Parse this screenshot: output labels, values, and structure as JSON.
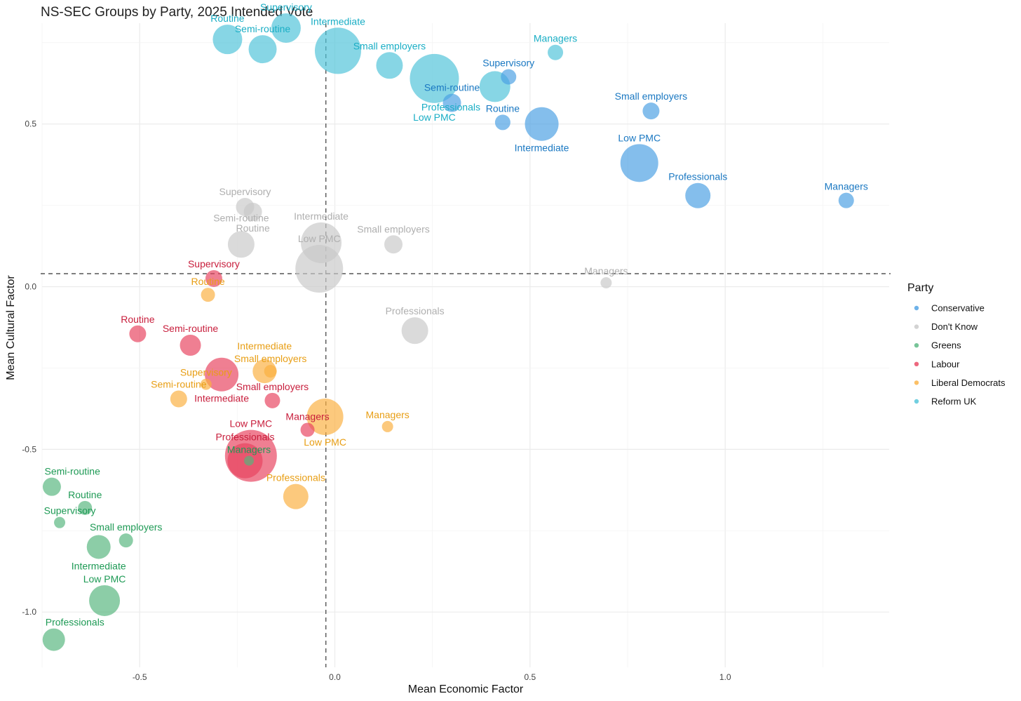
{
  "chart_data": {
    "type": "scatter",
    "title": "NS-SEC Groups by Party, 2025 Intended Vote",
    "xlabel": "Mean Economic Factor",
    "ylabel": "Mean Cultural Factor",
    "xlim": [
      -0.75,
      1.42
    ],
    "ylim": [
      -1.17,
      0.81
    ],
    "x_ticks": [
      -0.5,
      0.0,
      0.5,
      1.0
    ],
    "x_tick_labels": [
      "-0.5",
      "0.0",
      "0.5",
      "1.0"
    ],
    "y_ticks": [
      -1.0,
      -0.5,
      0.0,
      0.5
    ],
    "y_tick_labels": [
      "-1.0",
      "-0.5",
      "0.0",
      "0.5"
    ],
    "reference_lines": {
      "vertical_x": -0.023,
      "horizontal_y": 0.04
    },
    "grid": true,
    "legend": {
      "title": "Party",
      "placement": "right"
    },
    "series": [
      {
        "name": "Conservative",
        "color": "#4A9FE3",
        "label_color": "#1A78C2",
        "points": [
          {
            "label": "Managers",
            "x": 1.31,
            "y": 0.265,
            "size": 11
          },
          {
            "label": "Professionals",
            "x": 0.93,
            "y": 0.28,
            "size": 18
          },
          {
            "label": "Low PMC",
            "x": 0.78,
            "y": 0.38,
            "size": 27
          },
          {
            "label": "Small employers",
            "x": 0.81,
            "y": 0.54,
            "size": 12
          },
          {
            "label": "Intermediate",
            "x": 0.53,
            "y": 0.5,
            "size": 24
          },
          {
            "label": "Routine",
            "x": 0.43,
            "y": 0.505,
            "size": 11
          },
          {
            "label": "Semi-routine",
            "x": 0.3,
            "y": 0.565,
            "size": 13
          },
          {
            "label": "Supervisory",
            "x": 0.445,
            "y": 0.645,
            "size": 11
          }
        ]
      },
      {
        "name": "Don't Know",
        "color": "#C8C8C8",
        "label_color": "#AFAFAF",
        "points": [
          {
            "label": "Supervisory",
            "x": -0.23,
            "y": 0.245,
            "size": 13
          },
          {
            "label": "Routine",
            "x": -0.21,
            "y": 0.23,
            "size": 13
          },
          {
            "label": "Semi-routine",
            "x": -0.24,
            "y": 0.13,
            "size": 19
          },
          {
            "label": "Intermediate",
            "x": -0.035,
            "y": 0.135,
            "size": 29
          },
          {
            "label": "Low PMC",
            "x": -0.04,
            "y": 0.055,
            "size": 34
          },
          {
            "label": "Small employers",
            "x": 0.15,
            "y": 0.13,
            "size": 13
          },
          {
            "label": "Managers",
            "x": 0.695,
            "y": 0.012,
            "size": 8
          },
          {
            "label": "Professionals",
            "x": 0.205,
            "y": -0.135,
            "size": 19
          }
        ]
      },
      {
        "name": "Greens",
        "color": "#55B57E",
        "label_color": "#1E9A55",
        "points": [
          {
            "label": "Semi-routine",
            "x": -0.725,
            "y": -0.615,
            "size": 13
          },
          {
            "label": "Routine",
            "x": -0.64,
            "y": -0.68,
            "size": 10
          },
          {
            "label": "Supervisory",
            "x": -0.705,
            "y": -0.725,
            "size": 8
          },
          {
            "label": "Small employers",
            "x": -0.535,
            "y": -0.78,
            "size": 10
          },
          {
            "label": "Intermediate",
            "x": -0.605,
            "y": -0.8,
            "size": 17
          },
          {
            "label": "Low PMC",
            "x": -0.59,
            "y": -0.965,
            "size": 22
          },
          {
            "label": "Professionals",
            "x": -0.72,
            "y": -1.085,
            "size": 16
          },
          {
            "label": "Managers",
            "x": -0.22,
            "y": -0.535,
            "size": 7
          }
        ]
      },
      {
        "name": "Labour",
        "color": "#E8425E",
        "label_color": "#C81E3C",
        "points": [
          {
            "label": "Supervisory",
            "x": -0.31,
            "y": 0.025,
            "size": 12
          },
          {
            "label": "Routine",
            "x": -0.505,
            "y": -0.145,
            "size": 12
          },
          {
            "label": "Semi-routine",
            "x": -0.37,
            "y": -0.18,
            "size": 15
          },
          {
            "label": "Intermediate",
            "x": -0.29,
            "y": -0.27,
            "size": 24
          },
          {
            "label": "Small employers",
            "x": -0.16,
            "y": -0.35,
            "size": 11
          },
          {
            "label": "Managers",
            "x": -0.07,
            "y": -0.44,
            "size": 10
          },
          {
            "label": "Low PMC",
            "x": -0.215,
            "y": -0.52,
            "size": 37
          },
          {
            "label": "Professionals",
            "x": -0.23,
            "y": -0.535,
            "size": 25
          }
        ]
      },
      {
        "name": "Liberal Democrats",
        "color": "#FBB040",
        "label_color": "#E89E14",
        "points": [
          {
            "label": "Routine",
            "x": -0.325,
            "y": -0.025,
            "size": 10
          },
          {
            "label": "Intermediate",
            "x": -0.18,
            "y": -0.26,
            "size": 17
          },
          {
            "label": "Small employers",
            "x": -0.165,
            "y": -0.26,
            "size": 9
          },
          {
            "label": "Supervisory",
            "x": -0.33,
            "y": -0.3,
            "size": 8
          },
          {
            "label": "Semi-routine",
            "x": -0.4,
            "y": -0.345,
            "size": 12
          },
          {
            "label": "Low PMC",
            "x": -0.025,
            "y": -0.4,
            "size": 26
          },
          {
            "label": "Managers",
            "x": 0.135,
            "y": -0.43,
            "size": 8
          },
          {
            "label": "Professionals",
            "x": -0.1,
            "y": -0.645,
            "size": 18
          }
        ]
      },
      {
        "name": "Reform UK",
        "color": "#4EC3D8",
        "label_color": "#1AAEC5",
        "points": [
          {
            "label": "Routine",
            "x": -0.275,
            "y": 0.76,
            "size": 21
          },
          {
            "label": "Supervisory",
            "x": -0.125,
            "y": 0.795,
            "size": 21
          },
          {
            "label": "Semi-routine",
            "x": -0.185,
            "y": 0.73,
            "size": 20
          },
          {
            "label": "Intermediate",
            "x": 0.008,
            "y": 0.725,
            "size": 33
          },
          {
            "label": "Small employers",
            "x": 0.14,
            "y": 0.68,
            "size": 19
          },
          {
            "label": "Low PMC",
            "x": 0.255,
            "y": 0.64,
            "size": 35
          },
          {
            "label": "Managers",
            "x": 0.565,
            "y": 0.72,
            "size": 11
          },
          {
            "label": "Professionals",
            "x": 0.41,
            "y": 0.615,
            "size": 22
          }
        ]
      }
    ]
  }
}
